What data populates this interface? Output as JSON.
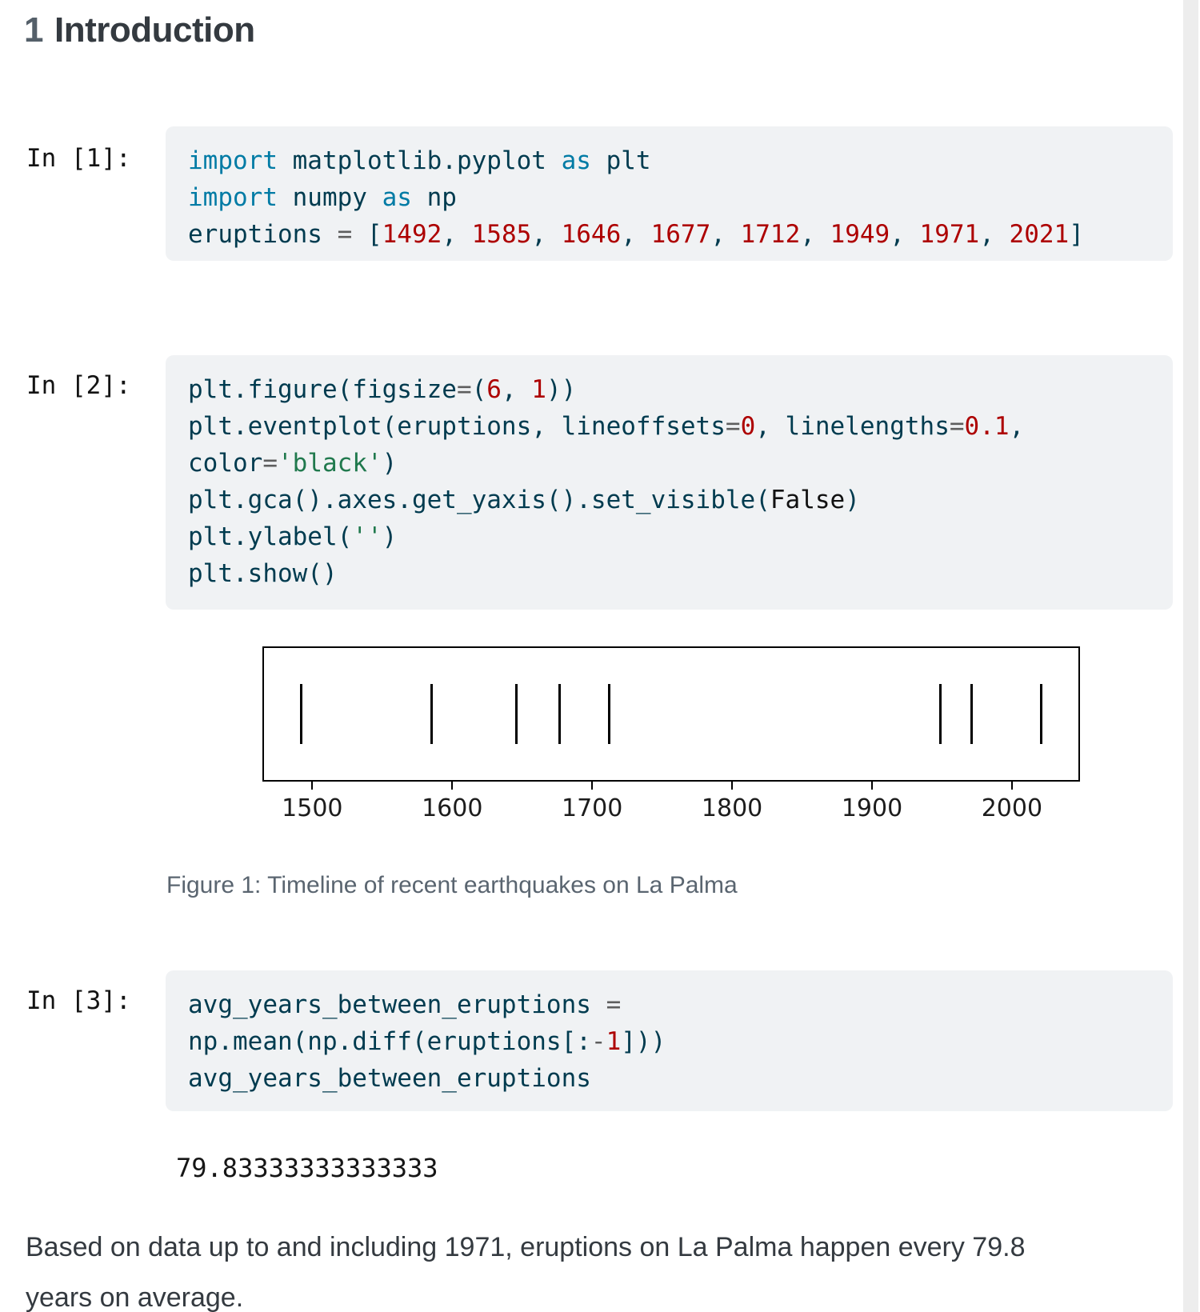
{
  "heading": {
    "number": "1",
    "title": "Introduction"
  },
  "cells": [
    {
      "label": "In [1]:",
      "lines": [
        [
          [
            "kw",
            "import"
          ],
          [
            "pl",
            " matplotlib.pyplot "
          ],
          [
            "kw",
            "as"
          ],
          [
            "pl",
            " plt"
          ]
        ],
        [
          [
            "kw",
            "import"
          ],
          [
            "pl",
            " numpy "
          ],
          [
            "kw",
            "as"
          ],
          [
            "pl",
            " np"
          ]
        ],
        [
          [
            "pl",
            "eruptions "
          ],
          [
            "op",
            "="
          ],
          [
            "pl",
            " ["
          ],
          [
            "num",
            "1492"
          ],
          [
            "pl",
            ", "
          ],
          [
            "num",
            "1585"
          ],
          [
            "pl",
            ", "
          ],
          [
            "num",
            "1646"
          ],
          [
            "pl",
            ", "
          ],
          [
            "num",
            "1677"
          ],
          [
            "pl",
            ", "
          ],
          [
            "num",
            "1712"
          ],
          [
            "pl",
            ", "
          ],
          [
            "num",
            "1949"
          ],
          [
            "pl",
            ", "
          ],
          [
            "num",
            "1971"
          ],
          [
            "pl",
            ", "
          ],
          [
            "num",
            "2021"
          ],
          [
            "pl",
            "]"
          ]
        ]
      ]
    },
    {
      "label": "In [2]:",
      "lines": [
        [
          [
            "pl",
            "plt.figure(figsize"
          ],
          [
            "op",
            "="
          ],
          [
            "pl",
            "("
          ],
          [
            "num",
            "6"
          ],
          [
            "pl",
            ", "
          ],
          [
            "num",
            "1"
          ],
          [
            "pl",
            "))"
          ]
        ],
        [
          [
            "pl",
            "plt.eventplot(eruptions, lineoffsets"
          ],
          [
            "op",
            "="
          ],
          [
            "num",
            "0"
          ],
          [
            "pl",
            ", linelengths"
          ],
          [
            "op",
            "="
          ],
          [
            "num",
            "0.1"
          ],
          [
            "pl",
            ","
          ]
        ],
        [
          [
            "pl",
            "color"
          ],
          [
            "op",
            "="
          ],
          [
            "str",
            "'black'"
          ],
          [
            "pl",
            ")"
          ]
        ],
        [
          [
            "pl",
            "plt.gca().axes.get_yaxis().set_visible("
          ],
          [
            "va",
            "False"
          ],
          [
            "pl",
            ")"
          ]
        ],
        [
          [
            "pl",
            "plt.ylabel("
          ],
          [
            "str",
            "''"
          ],
          [
            "pl",
            ")"
          ]
        ],
        [
          [
            "pl",
            "plt.show()"
          ]
        ]
      ]
    },
    {
      "label": "In [3]:",
      "lines": [
        [
          [
            "pl",
            "avg_years_between_eruptions "
          ],
          [
            "op",
            "="
          ]
        ],
        [
          [
            "pl",
            "np.mean(np.diff(eruptions[:"
          ],
          [
            "op",
            "-"
          ],
          [
            "num",
            "1"
          ],
          [
            "pl",
            "]))"
          ]
        ],
        [
          [
            "pl",
            "avg_years_between_eruptions"
          ]
        ]
      ]
    }
  ],
  "figure": {
    "caption": "Figure 1: Timeline of recent earthquakes on La Palma"
  },
  "chart_data": {
    "type": "scatter",
    "subtype": "eventplot-timeline",
    "title": "",
    "xlabel": "",
    "ylabel": "",
    "x": [
      1492,
      1585,
      1646,
      1677,
      1712,
      1949,
      1971,
      2021
    ],
    "xticks": [
      1500,
      1600,
      1700,
      1800,
      1900,
      2000
    ],
    "xlim": [
      1465.5,
      2047.5
    ],
    "marker": "vertical-event-line",
    "marker_color": "#000000",
    "grid": false,
    "legend": false
  },
  "output": {
    "value": "79.83333333333333"
  },
  "paragraph": "Based on data up to and including 1971, eruptions on La Palma happen every 79.8 years on average.",
  "colors": {
    "keyword": "#007ba5",
    "plain_code": "#003b4f",
    "number": "#ad0000",
    "string": "#20794d",
    "operator": "#5e5e5e",
    "constant": "#111111",
    "code_background": "#f0f2f4",
    "caption_text": "#5a6570",
    "scrollbar_track": "#ededed"
  }
}
